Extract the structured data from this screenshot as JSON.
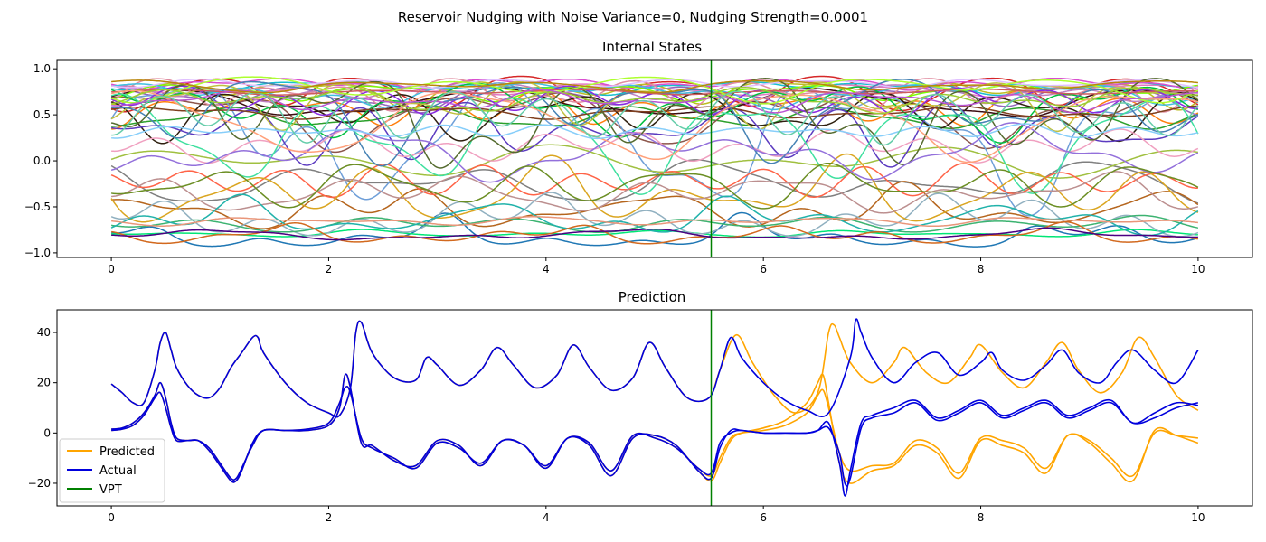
{
  "figure": {
    "suptitle": "Reservoir Nudging with Noise Variance=0, Nudging Strength=0.0001"
  },
  "chart_data": [
    {
      "type": "line",
      "title": "Internal States",
      "xlabel": "",
      "ylabel": "",
      "xlim": [
        -0.5,
        10.5
      ],
      "ylim": [
        -1.05,
        1.1
      ],
      "xticks": [
        0,
        2,
        4,
        6,
        8,
        10
      ],
      "yticks": [
        -1.0,
        -0.5,
        0.0,
        0.5,
        1.0
      ],
      "ytick_labels": [
        "−1.0",
        "−0.5",
        "0.0",
        "0.5",
        "1.0"
      ],
      "xtick_labels": [
        "0",
        "2",
        "4",
        "6",
        "8",
        "10"
      ],
      "vline_x": 5.52,
      "vline_color": "#008000",
      "grid": false,
      "legend": false,
      "series_count": 50,
      "series_colors": [
        "#1f77b4",
        "#ff7f0e",
        "#2ca02c",
        "#d62728",
        "#9467bd",
        "#8c564b",
        "#e377c2",
        "#7f7f7f",
        "#bcbd22",
        "#17becf",
        "#3b0d11",
        "#d94fd0",
        "#7cfc00",
        "#00e676",
        "#c080c0",
        "#6f9fd8",
        "#b5651d",
        "#a0c040",
        "#e08ca0",
        "#40c0e0",
        "#2e1f0f",
        "#5c3bc0",
        "#00c040",
        "#f0a0c0",
        "#90b0c0",
        "#c0c040",
        "#804020",
        "#40e0a0",
        "#e0c0ff",
        "#8a2be2",
        "#3cb371",
        "#ff6347",
        "#4682b4",
        "#daa520",
        "#556b2f",
        "#bc8f8f",
        "#20b2aa",
        "#9370db",
        "#6b8e23",
        "#cd5c5c",
        "#ffa07a",
        "#87cefa",
        "#adff2f",
        "#d2691e",
        "#9acd32",
        "#ba55d3",
        "#66cdaa",
        "#b8860b",
        "#e9967a",
        "#4b0082"
      ]
    },
    {
      "type": "line",
      "title": "Prediction",
      "xlabel": "",
      "ylabel": "",
      "xlim": [
        -0.5,
        10.5
      ],
      "ylim": [
        -29,
        49
      ],
      "xticks": [
        0,
        2,
        4,
        6,
        8,
        10
      ],
      "yticks": [
        -20,
        0,
        20,
        40
      ],
      "ytick_labels": [
        "−20",
        "0",
        "20",
        "40"
      ],
      "xtick_labels": [
        "0",
        "2",
        "4",
        "6",
        "8",
        "10"
      ],
      "vline_x": 5.52,
      "grid": false,
      "legend_position": "lower-left",
      "legend": [
        {
          "label": "Predicted",
          "color": "#ffa500"
        },
        {
          "label": "Actual",
          "color": "#0000dd"
        },
        {
          "label": "VPT",
          "color": "#008000"
        }
      ],
      "series": [
        {
          "name": "Actual",
          "color": "#0000dd",
          "component": "x",
          "x": [
            0,
            0.1,
            0.2,
            0.3,
            0.4,
            0.45,
            0.5,
            0.55,
            0.6,
            0.7,
            0.8,
            0.9,
            1.0,
            1.1,
            1.15,
            1.2,
            1.3,
            1.4,
            1.6,
            1.8,
            2.0,
            2.1,
            2.15,
            2.2,
            2.3,
            2.4,
            2.6,
            2.8,
            3.0,
            3.2,
            3.4,
            3.6,
            3.8,
            4.0,
            4.2,
            4.4,
            4.6,
            4.8,
            5.0,
            5.2,
            5.4,
            5.52,
            5.6,
            5.7,
            5.8,
            6.0,
            6.2,
            6.4,
            6.5,
            6.6,
            6.7,
            6.75,
            6.8,
            6.9,
            7.0,
            7.2,
            7.4,
            7.6,
            7.8,
            8.0,
            8.2,
            8.4,
            8.6,
            8.8,
            9.0,
            9.2,
            9.4,
            9.6,
            9.8,
            10.0
          ],
          "y": [
            1.5,
            2,
            4,
            8,
            15,
            20,
            14,
            4,
            -2,
            -3,
            -3,
            -6,
            -12,
            -18,
            -18,
            -14,
            -5,
            1,
            1,
            1.5,
            4,
            12,
            18,
            16,
            -2,
            -6,
            -10,
            -14,
            -4,
            -6,
            -12,
            -3,
            -5,
            -13,
            -2,
            -4,
            -15,
            -1,
            -2,
            -6,
            -14,
            -16,
            -4,
            0,
            1,
            0,
            0,
            0,
            1,
            2,
            -8,
            -20,
            -18,
            2,
            6,
            8,
            12,
            5,
            8,
            12,
            6,
            9,
            12,
            6,
            9,
            12,
            4,
            6,
            10,
            12
          ]
        },
        {
          "name": "Actual",
          "color": "#0000dd",
          "component": "y",
          "x": [
            0,
            0.1,
            0.2,
            0.3,
            0.4,
            0.45,
            0.5,
            0.55,
            0.6,
            0.7,
            0.8,
            0.9,
            1.0,
            1.1,
            1.15,
            1.2,
            1.3,
            1.4,
            1.6,
            1.8,
            2.0,
            2.1,
            2.15,
            2.2,
            2.3,
            2.4,
            2.6,
            2.8,
            3.0,
            3.2,
            3.4,
            3.6,
            3.8,
            4.0,
            4.2,
            4.4,
            4.6,
            4.8,
            5.0,
            5.2,
            5.4,
            5.52,
            5.6,
            5.7,
            5.8,
            6.0,
            6.2,
            6.4,
            6.5,
            6.6,
            6.7,
            6.75,
            6.8,
            6.9,
            7.0,
            7.2,
            7.4,
            7.6,
            7.8,
            8.0,
            8.2,
            8.4,
            8.6,
            8.8,
            9.0,
            9.2,
            9.4,
            9.6,
            9.8,
            10.0
          ],
          "y": [
            1,
            1.5,
            3,
            7,
            14,
            16,
            10,
            2,
            -3,
            -3,
            -3,
            -7,
            -13,
            -19,
            -19,
            -15,
            -4,
            1,
            1,
            1,
            3,
            10,
            23,
            18,
            -4,
            -5,
            -11,
            -13,
            -3,
            -5,
            -13,
            -3,
            -5,
            -14,
            -2,
            -5,
            -17,
            -2,
            -1,
            -5,
            -15,
            -18,
            -6,
            1,
            1,
            0,
            0,
            0,
            1,
            4,
            -12,
            -25,
            -15,
            4,
            7,
            10,
            13,
            6,
            9,
            13,
            7,
            10,
            13,
            7,
            10,
            13,
            4,
            8,
            12,
            11
          ]
        },
        {
          "name": "Actual",
          "color": "#0000dd",
          "component": "z",
          "x": [
            0,
            0.1,
            0.2,
            0.3,
            0.4,
            0.45,
            0.5,
            0.55,
            0.6,
            0.7,
            0.8,
            0.9,
            1.0,
            1.1,
            1.2,
            1.3,
            1.35,
            1.4,
            1.6,
            1.8,
            2.0,
            2.1,
            2.2,
            2.25,
            2.3,
            2.4,
            2.6,
            2.8,
            2.9,
            3.0,
            3.2,
            3.4,
            3.55,
            3.7,
            3.9,
            4.1,
            4.25,
            4.4,
            4.6,
            4.8,
            4.95,
            5.1,
            5.3,
            5.5,
            5.6,
            5.7,
            5.8,
            6.0,
            6.2,
            6.4,
            6.6,
            6.8,
            6.85,
            6.9,
            7.0,
            7.2,
            7.4,
            7.6,
            7.8,
            8.0,
            8.1,
            8.2,
            8.4,
            8.6,
            8.75,
            8.9,
            9.1,
            9.25,
            9.4,
            9.6,
            9.8,
            10.0
          ],
          "y": [
            19.5,
            16,
            12,
            12,
            25,
            36,
            40,
            33,
            26,
            19,
            15,
            14,
            18,
            26,
            32,
            38,
            38,
            32,
            20,
            12,
            8,
            7,
            18,
            40,
            44,
            32,
            22,
            21,
            30,
            27,
            19,
            25,
            34,
            27,
            18,
            23,
            35,
            26,
            17,
            22,
            36,
            26,
            14,
            14,
            25,
            38,
            30,
            20,
            13,
            9,
            8,
            30,
            45,
            40,
            30,
            20,
            28,
            32,
            23,
            28,
            32,
            25,
            21,
            27,
            33,
            24,
            20,
            28,
            33,
            25,
            20,
            33
          ]
        },
        {
          "name": "Predicted",
          "color": "#ffa500",
          "component": "x",
          "x": [
            0,
            0.1,
            0.2,
            0.3,
            0.4,
            0.45,
            0.5,
            0.55,
            0.6,
            0.7,
            0.8,
            0.9,
            1.0,
            1.1,
            1.15,
            1.2,
            1.3,
            1.4,
            1.6,
            1.8,
            2.0,
            2.1,
            2.15,
            2.2,
            2.3,
            2.4,
            2.6,
            2.8,
            3.0,
            3.2,
            3.4,
            3.6,
            3.8,
            4.0,
            4.2,
            4.4,
            4.6,
            4.8,
            5.0,
            5.2,
            5.4,
            5.52,
            5.6,
            5.7,
            5.8,
            6.0,
            6.2,
            6.4,
            6.5,
            6.55,
            6.6,
            6.7,
            6.8,
            7.0,
            7.2,
            7.4,
            7.6,
            7.8,
            8.0,
            8.2,
            8.4,
            8.6,
            8.8,
            9.0,
            9.2,
            9.4,
            9.6,
            9.8,
            10.0
          ],
          "y": [
            1.5,
            2,
            4,
            8,
            15,
            20,
            14,
            4,
            -2,
            -3,
            -3,
            -6,
            -12,
            -18,
            -18,
            -14,
            -5,
            1,
            1,
            1.5,
            4,
            12,
            18,
            16,
            -2,
            -6,
            -10,
            -14,
            -4,
            -6,
            -12,
            -3,
            -5,
            -13,
            -2,
            -4,
            -15,
            -1,
            -2,
            -6,
            -14,
            -17,
            -10,
            -2,
            0,
            1,
            3,
            8,
            15,
            17,
            10,
            -8,
            -15,
            -13,
            -12,
            -3,
            -6,
            -16,
            -2,
            -3,
            -6,
            -14,
            -1,
            -3,
            -10,
            -17,
            0,
            -1,
            -2
          ]
        },
        {
          "name": "Predicted",
          "color": "#ffa500",
          "component": "y",
          "x": [
            0,
            0.1,
            0.2,
            0.3,
            0.4,
            0.45,
            0.5,
            0.55,
            0.6,
            0.7,
            0.8,
            0.9,
            1.0,
            1.1,
            1.15,
            1.2,
            1.3,
            1.4,
            1.6,
            1.8,
            2.0,
            2.1,
            2.15,
            2.2,
            2.3,
            2.4,
            2.6,
            2.8,
            3.0,
            3.2,
            3.4,
            3.6,
            3.8,
            4.0,
            4.2,
            4.4,
            4.6,
            4.8,
            5.0,
            5.2,
            5.4,
            5.52,
            5.6,
            5.7,
            5.8,
            6.0,
            6.2,
            6.4,
            6.5,
            6.55,
            6.6,
            6.7,
            6.8,
            7.0,
            7.2,
            7.4,
            7.6,
            7.8,
            8.0,
            8.2,
            8.4,
            8.6,
            8.8,
            9.0,
            9.2,
            9.4,
            9.6,
            9.8,
            10.0
          ],
          "y": [
            1,
            1.5,
            3,
            7,
            14,
            16,
            10,
            2,
            -3,
            -3,
            -3,
            -7,
            -13,
            -19,
            -19,
            -15,
            -4,
            1,
            1,
            1,
            3,
            10,
            23,
            18,
            -4,
            -5,
            -11,
            -13,
            -3,
            -5,
            -13,
            -3,
            -5,
            -14,
            -2,
            -5,
            -17,
            -2,
            -1,
            -5,
            -15,
            -19,
            -12,
            -3,
            0,
            2,
            5,
            12,
            20,
            23,
            12,
            -12,
            -20,
            -15,
            -13,
            -5,
            -8,
            -18,
            -3,
            -5,
            -8,
            -16,
            -1,
            -4,
            -12,
            -19,
            1,
            -1,
            -4
          ]
        },
        {
          "name": "Predicted",
          "color": "#ffa500",
          "component": "z",
          "x": [
            0,
            0.1,
            0.2,
            0.3,
            0.4,
            0.45,
            0.5,
            0.55,
            0.6,
            0.7,
            0.8,
            0.9,
            1.0,
            1.1,
            1.2,
            1.3,
            1.35,
            1.4,
            1.6,
            1.8,
            2.0,
            2.1,
            2.2,
            2.25,
            2.3,
            2.4,
            2.6,
            2.8,
            2.9,
            3.0,
            3.2,
            3.4,
            3.55,
            3.7,
            3.9,
            4.1,
            4.25,
            4.4,
            4.6,
            4.8,
            4.95,
            5.1,
            5.3,
            5.5,
            5.6,
            5.75,
            5.9,
            6.1,
            6.3,
            6.5,
            6.6,
            6.65,
            6.7,
            6.8,
            7.0,
            7.2,
            7.3,
            7.5,
            7.7,
            7.9,
            8.0,
            8.2,
            8.4,
            8.6,
            8.75,
            8.9,
            9.1,
            9.3,
            9.45,
            9.6,
            9.8,
            10.0
          ],
          "y": [
            19.5,
            16,
            12,
            12,
            25,
            36,
            40,
            33,
            26,
            19,
            15,
            14,
            18,
            26,
            32,
            38,
            38,
            32,
            20,
            12,
            8,
            7,
            18,
            40,
            44,
            32,
            22,
            21,
            30,
            27,
            19,
            25,
            34,
            27,
            18,
            23,
            35,
            26,
            17,
            22,
            36,
            26,
            14,
            14,
            25,
            39,
            28,
            15,
            8,
            16,
            40,
            43,
            38,
            28,
            20,
            28,
            34,
            24,
            20,
            30,
            35,
            24,
            18,
            28,
            36,
            25,
            16,
            24,
            38,
            30,
            15,
            9
          ]
        }
      ]
    }
  ]
}
